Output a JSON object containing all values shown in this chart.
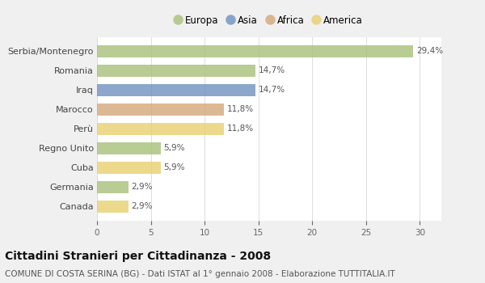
{
  "categories": [
    "Serbia/Montenegro",
    "Romania",
    "Iraq",
    "Marocco",
    "Perù",
    "Regno Unito",
    "Cuba",
    "Germania",
    "Canada"
  ],
  "values": [
    29.4,
    14.7,
    14.7,
    11.8,
    11.8,
    5.9,
    5.9,
    2.9,
    2.9
  ],
  "labels": [
    "29,4%",
    "14,7%",
    "14,7%",
    "11,8%",
    "11,8%",
    "5,9%",
    "5,9%",
    "2,9%",
    "2,9%"
  ],
  "colors": [
    "#a8c07a",
    "#a8c07a",
    "#7090c0",
    "#d4a87a",
    "#e8d070",
    "#a8c07a",
    "#e8d070",
    "#a8c07a",
    "#e8d070"
  ],
  "legend_order": [
    "Europa",
    "Asia",
    "Africa",
    "America"
  ],
  "legend_colors": {
    "Europa": "#a8c07a",
    "Asia": "#7090c0",
    "Africa": "#d4a87a",
    "America": "#e8d070"
  },
  "xlim": [
    0,
    32
  ],
  "xticks": [
    0,
    5,
    10,
    15,
    20,
    25,
    30
  ],
  "title": "Cittadini Stranieri per Cittadinanza - 2008",
  "subtitle": "COMUNE DI COSTA SERINA (BG) - Dati ISTAT al 1° gennaio 2008 - Elaborazione TUTTITALIA.IT",
  "title_fontsize": 10,
  "subtitle_fontsize": 7.5,
  "bg_color": "#f0f0f0",
  "plot_bg_color": "#ffffff",
  "bar_alpha": 0.8,
  "bar_height": 0.62
}
